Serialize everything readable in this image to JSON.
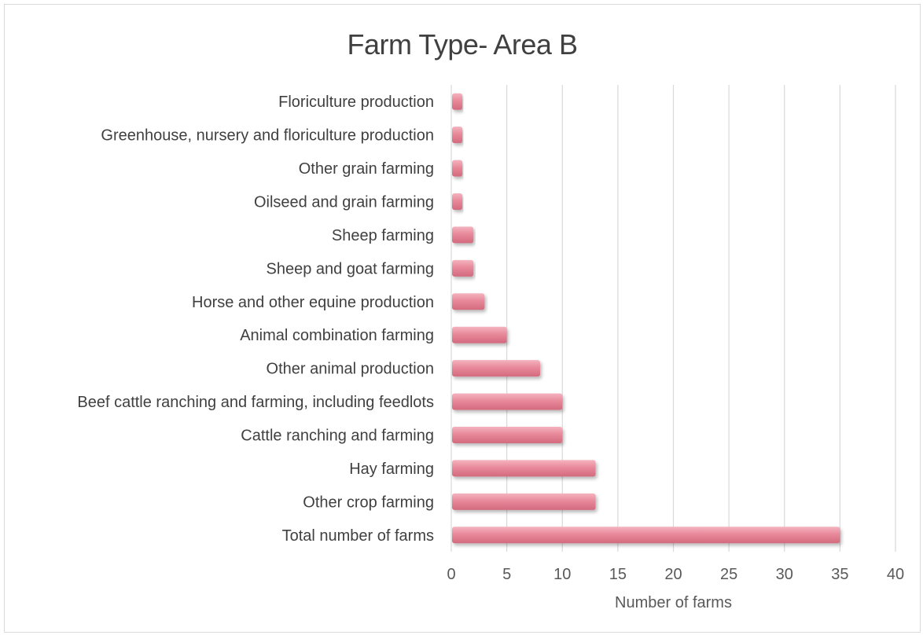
{
  "chart_data": {
    "type": "bar",
    "orientation": "horizontal",
    "title": "Farm Type- Area B",
    "xlabel": "Number of farms",
    "ylabel": "",
    "categories": [
      "Floriculture production",
      "Greenhouse, nursery and floriculture production",
      "Other grain farming",
      "Oilseed and grain farming",
      "Sheep farming",
      "Sheep and goat farming",
      "Horse and other equine production",
      "Animal combination farming",
      "Other animal production",
      "Beef cattle ranching and farming, including feedlots",
      "Cattle ranching and farming",
      "Hay farming",
      "Other crop farming",
      "Total number of farms"
    ],
    "values": [
      1,
      1,
      1,
      1,
      2,
      2,
      3,
      5,
      8,
      10,
      10,
      13,
      13,
      35
    ],
    "xlim": [
      0,
      40
    ],
    "xticks": [
      0,
      5,
      10,
      15,
      20,
      25,
      30,
      35,
      40
    ],
    "grid": "vertical",
    "legend": "none",
    "colors": {
      "bar": "#e8899a",
      "bar_light": "#f2a9b6",
      "bar_dark": "#c9566c",
      "grid": "#d9d9d9",
      "text": "#595959"
    }
  }
}
